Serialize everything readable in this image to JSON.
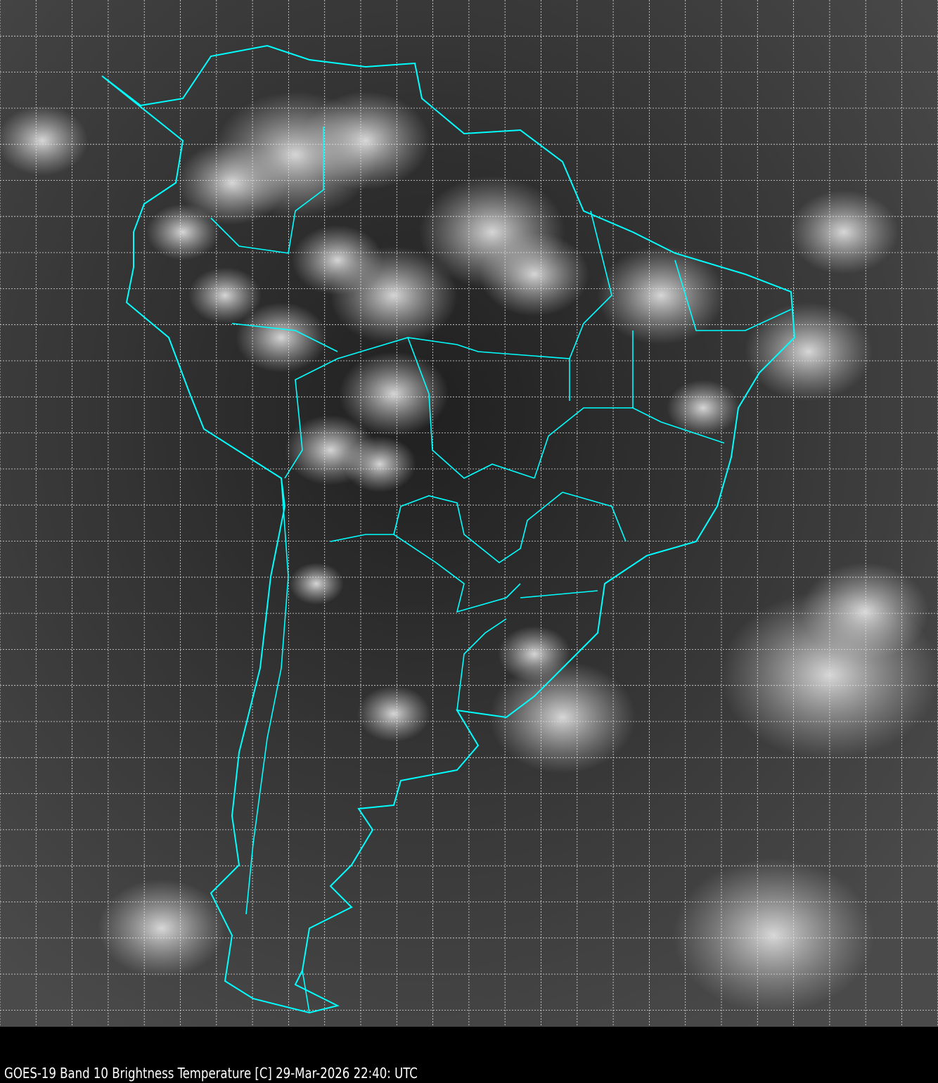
{
  "caption": "GOES-19 Band 10  Brightness Temperature [C] 29-Mar-2026 22:40: UTC",
  "map": {
    "satellite": "GOES-19",
    "band": "Band 10",
    "product": "Brightness Temperature [C]",
    "datetime": "29-Mar-2026 22:40: UTC",
    "region": "South America",
    "colormap": "grayscale",
    "boundary_color": "#00ffff",
    "grid_color": "#ffffff",
    "grid": "dashed"
  }
}
